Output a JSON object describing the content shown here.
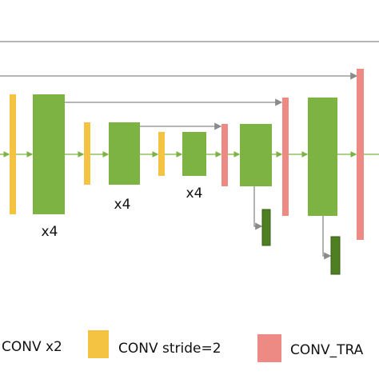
{
  "diagram": {
    "multipliers": [
      "x4",
      "x4",
      "x4"
    ],
    "legend": [
      {
        "label": "CONV x2"
      },
      {
        "label": "CONV stride=2"
      },
      {
        "label": "CONV_TRA"
      }
    ]
  }
}
